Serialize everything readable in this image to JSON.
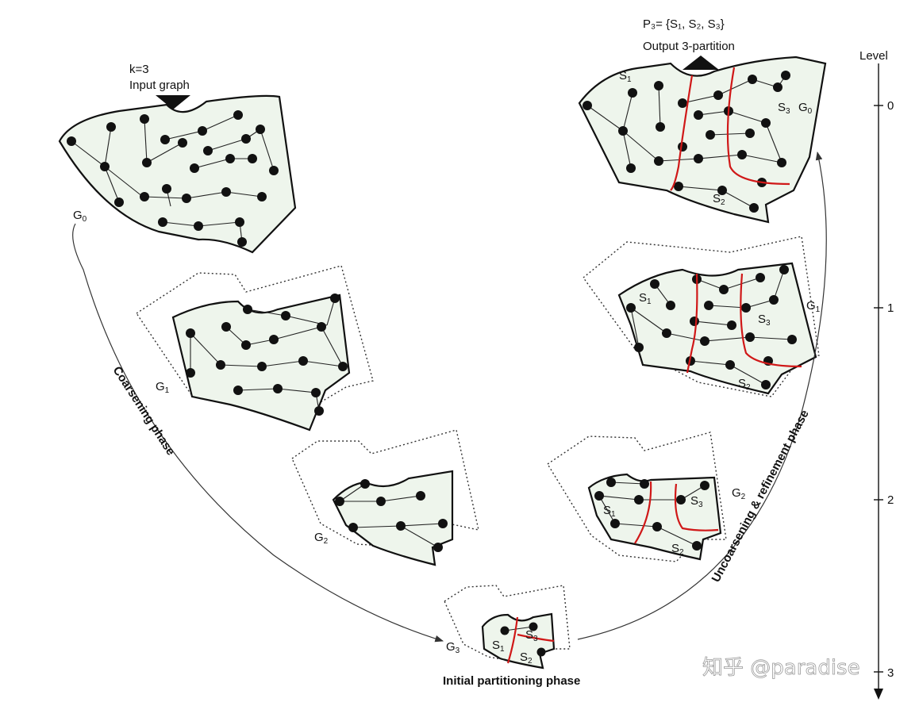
{
  "labels": {
    "k": "k=3",
    "input_graph": "Input graph",
    "partition_set": "P₃= {S₁, S₂, S₃}",
    "output_partition": "Output 3-partition",
    "level": "Level",
    "level_0": "0",
    "level_1": "1",
    "level_2": "2",
    "level_3": "3",
    "coarsening_phase": "Coarsening phase",
    "uncoarsening_phase": "Uncoarsening & refinement phase",
    "initial_phase": "Initial partitioning phase",
    "graph_letter": "G",
    "set_letter": "S",
    "idx_0": "0",
    "idx_1": "1",
    "idx_2": "2",
    "idx_3": "3"
  },
  "watermark": "知乎 @paradise",
  "colors": {
    "partition_line": "#d01818",
    "graph_fill": "#eef5ec"
  }
}
